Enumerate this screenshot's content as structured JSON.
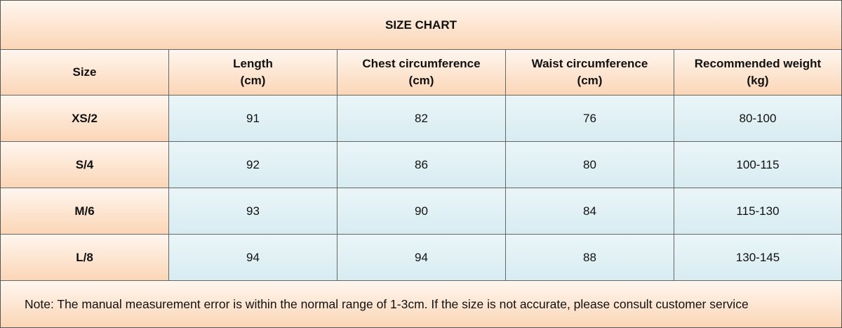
{
  "title": "SIZE CHART",
  "table": {
    "header": [
      [
        "Size"
      ],
      [
        "Length",
        "(cm)"
      ],
      [
        "Chest circumference",
        "(cm)"
      ],
      [
        "Waist circumference",
        "(cm)"
      ],
      [
        "Recommended weight",
        "(kg)"
      ]
    ],
    "rows": [
      [
        "XS/2",
        91,
        82,
        76,
        "80-100"
      ],
      [
        "S/4",
        92,
        86,
        80,
        "100-115"
      ],
      [
        "M/6",
        93,
        90,
        84,
        "115-130"
      ],
      [
        "L/8",
        94,
        94,
        88,
        "130-145"
      ]
    ]
  },
  "note": "Note: The manual measurement error is within the normal range of 1-3cm. If the size is not accurate, please consult customer service"
}
